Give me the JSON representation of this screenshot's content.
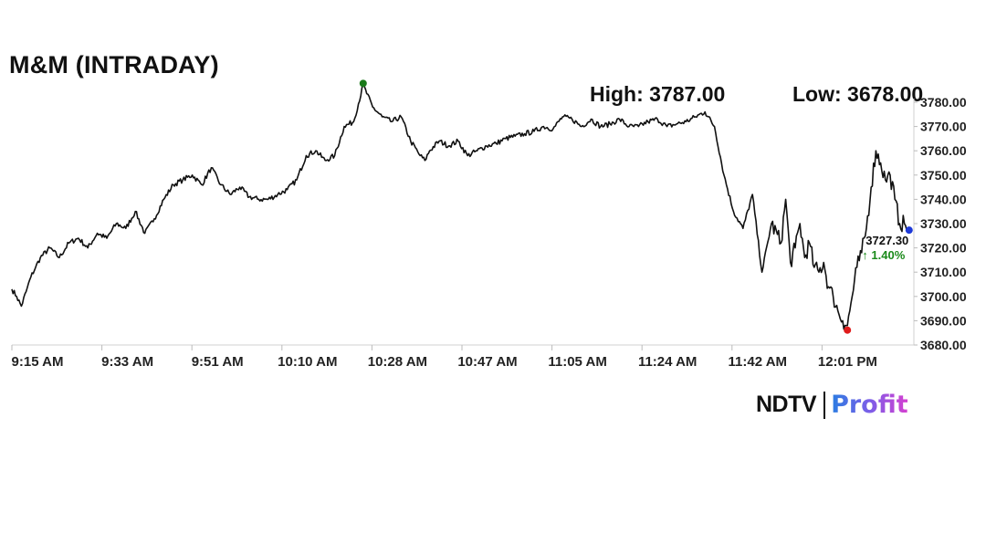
{
  "header": {
    "title": "M&M (INTRADAY)",
    "high_text": "High: 3787.00",
    "low_text": "Low: 3678.00"
  },
  "chart_data": {
    "type": "line",
    "title": "M&M (INTRADAY)",
    "xlabel": "",
    "ylabel": "",
    "x_tick_labels": [
      "9:15 AM",
      "9:33 AM",
      "9:51 AM",
      "10:10 AM",
      "10:28 AM",
      "10:47 AM",
      "11:05 AM",
      "11:24 AM",
      "11:42 AM",
      "12:01 PM"
    ],
    "y_tick_labels": [
      "3680.00",
      "3690.00",
      "3700.00",
      "3710.00",
      "3720.00",
      "3730.00",
      "3740.00",
      "3750.00",
      "3760.00",
      "3770.00",
      "3780.00"
    ],
    "ylim": [
      3680,
      3780
    ],
    "xlim_minutes_after_open": [
      0,
      190
    ],
    "grid": false,
    "series": [
      {
        "x": [
          0,
          1,
          2,
          3,
          4,
          5,
          6,
          8,
          10,
          12,
          14,
          16,
          18,
          20,
          22,
          24,
          26,
          28,
          30,
          32,
          34,
          36,
          38,
          40,
          42,
          44,
          46,
          48,
          50,
          52,
          54,
          56,
          58,
          60,
          62,
          64,
          66,
          68,
          70,
          72,
          74,
          76,
          78,
          80,
          82,
          84,
          86,
          87,
          88,
          90,
          92,
          94,
          96,
          98,
          100,
          102,
          104,
          106,
          108,
          110,
          112,
          114,
          116,
          118,
          120,
          122,
          124,
          126,
          128,
          130,
          132,
          134,
          136,
          138,
          140,
          142,
          144,
          146,
          148,
          150,
          152,
          154,
          156,
          158,
          160,
          162,
          163,
          164,
          165,
          166,
          167,
          168,
          169,
          170,
          171,
          172,
          173,
          174,
          175,
          176,
          177,
          178,
          179,
          180,
          181,
          182,
          183,
          184,
          185,
          186,
          187,
          188,
          189
        ],
        "y": [
          3703,
          3700,
          3696,
          3702,
          3708,
          3712,
          3716,
          3720,
          3716,
          3722,
          3724,
          3720,
          3726,
          3724,
          3730,
          3728,
          3735,
          3726,
          3732,
          3740,
          3746,
          3748,
          3750,
          3746,
          3753,
          3746,
          3742,
          3745,
          3741,
          3740,
          3740,
          3742,
          3744,
          3748,
          3758,
          3760,
          3756,
          3758,
          3770,
          3772,
          3787,
          3778,
          3774,
          3772,
          3774,
          3764,
          3758,
          3756,
          3760,
          3764,
          3762,
          3764,
          3758,
          3760,
          3762,
          3763,
          3765,
          3766,
          3767,
          3768,
          3770,
          3769,
          3774,
          3773,
          3770,
          3773,
          3770,
          3771,
          3773,
          3770,
          3770,
          3772,
          3773,
          3770,
          3771,
          3772,
          3774,
          3776,
          3770,
          3750,
          3735,
          3728,
          3742,
          3710,
          3730,
          3722,
          3740,
          3714,
          3720,
          3730,
          3716,
          3722,
          3712,
          3710,
          3714,
          3704,
          3700,
          3694,
          3690,
          3688,
          3700,
          3712,
          3718,
          3728,
          3745,
          3760,
          3755,
          3748,
          3750,
          3740,
          3730,
          3730,
          3727.3
        ]
      }
    ],
    "high_marker": {
      "label": "3787.00",
      "color": "#1a7a1a"
    },
    "low_marker": {
      "color": "#e01b1b"
    },
    "last_marker": {
      "value": "3727.30",
      "change": "1.40%",
      "color": "#1e3ad8",
      "change_color": "#1a8a1a"
    }
  },
  "branding": {
    "ndtv": "NDTV",
    "profit": "Profit"
  }
}
